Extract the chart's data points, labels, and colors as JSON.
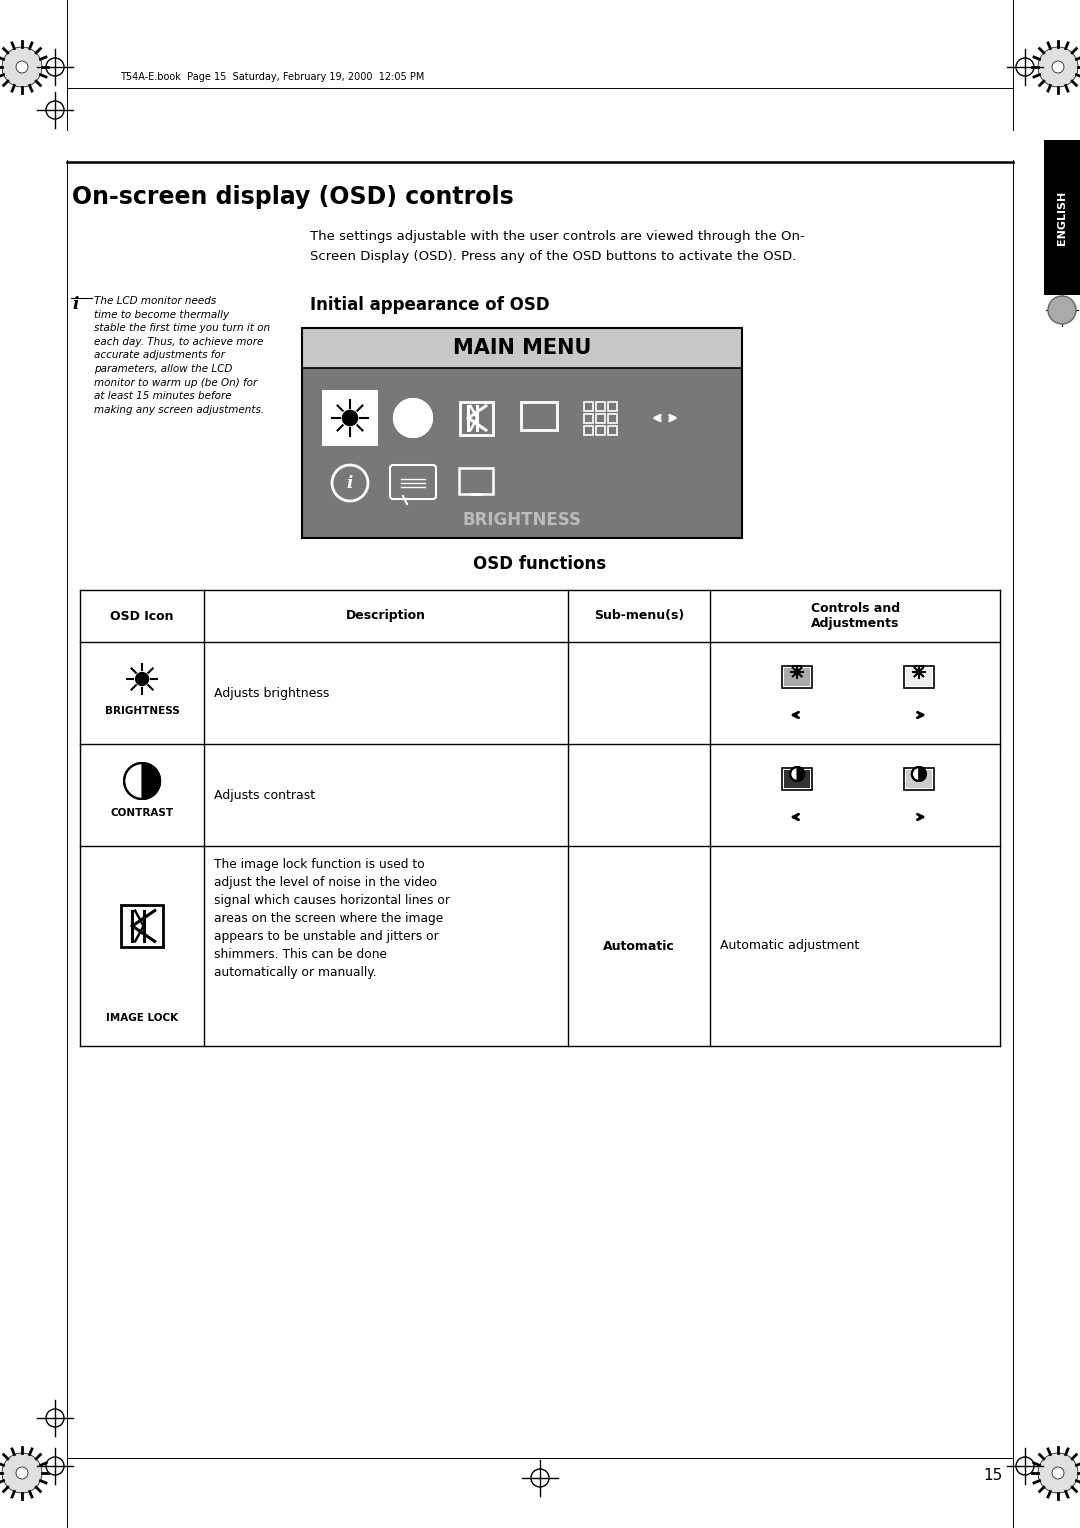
{
  "page_bg": "#ffffff",
  "header_text": "T54A-E.book  Page 15  Saturday, February 19, 2000  12:05 PM",
  "english_tab_text": "ENGLISH",
  "section_title": "On-screen display (OSD) controls",
  "intro_line1": "The settings adjustable with the user controls are viewed through the On-",
  "intro_line2": "Screen Display (OSD). Press any of the OSD buttons to activate the OSD.",
  "note_text": "The LCD monitor needs\ntime to become thermally\nstable the first time you turn it on\neach day. Thus, to achieve more\naccurate adjustments for\nparameters, allow the LCD\nmonitor to warm up (be On) for\nat least 15 minutes before\nmaking any screen adjustments.",
  "osd_title": "Initial appearance of OSD",
  "osd_menu_title": "MAIN MENU",
  "osd_brightness_label": "BRIGHTNESS",
  "table_title": "OSD functions",
  "table_headers": [
    "OSD Icon",
    "Description",
    "Sub-menu(s)",
    "Controls and\nAdjustments"
  ],
  "row1_icon": "BRIGHTNESS",
  "row1_desc": "Adjusts brightness",
  "row2_icon": "CONTRAST",
  "row2_desc": "Adjusts contrast",
  "row3_icon": "IMAGE LOCK",
  "row3_desc": "The image lock function is used to\nadjust the level of noise in the video\nsignal which causes horizontal lines or\nareas on the screen where the image\nappears to be unstable and jitters or\nshimmers. This can be done\nautomatically or manually.",
  "row3_submenu": "Automatic",
  "row3_controls": "Automatic adjustment",
  "page_number": "15"
}
